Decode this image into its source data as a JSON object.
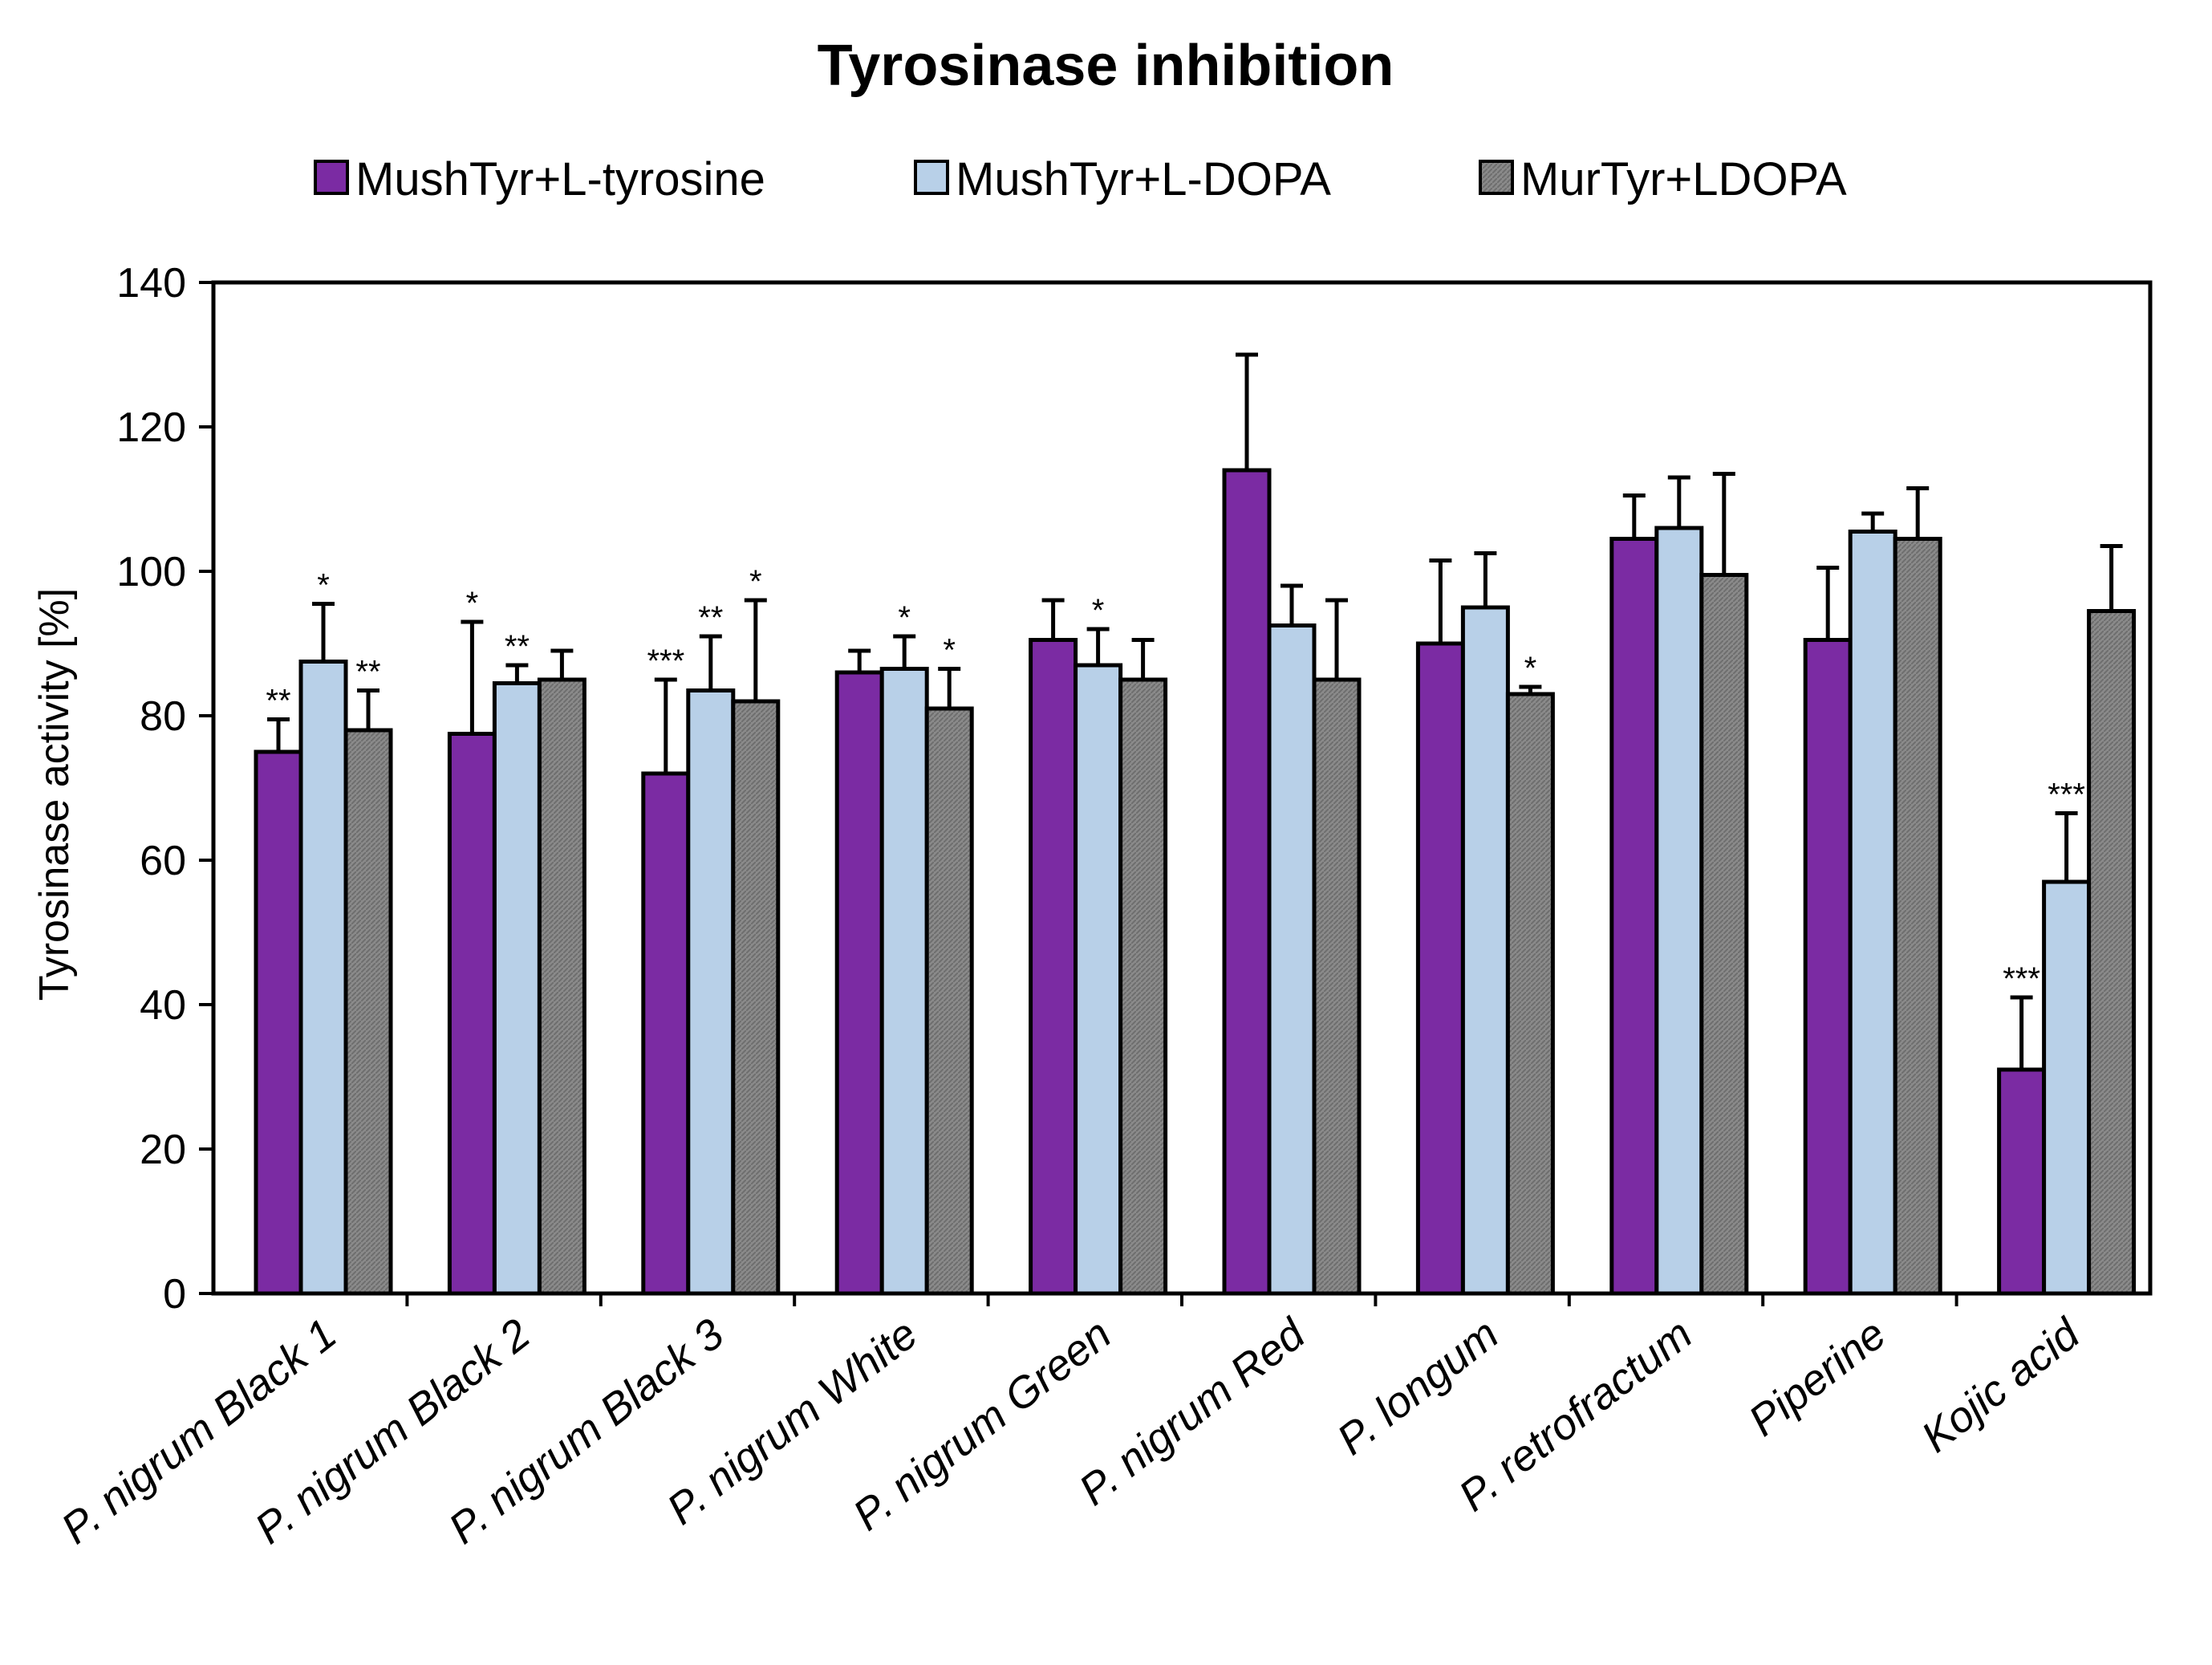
{
  "chart_data": {
    "type": "bar",
    "title": "Tyrosinase inhibition",
    "xlabel": "",
    "ylabel": "Tyrosinase activity [%]",
    "ylim": [
      0,
      140
    ],
    "yticks": [
      0,
      20,
      40,
      60,
      80,
      100,
      120,
      140
    ],
    "legend_position": "top",
    "grid": false,
    "error_bars": "positive",
    "categories": [
      "P. nigrum Black 1",
      "P. nigrum Black 2",
      "P. nigrum Black 3",
      "P. nigrum White",
      "P. nigrum Green",
      "P. nigrum Red",
      "P. longum",
      "P. retrofractum",
      "Piperine",
      "Kojic acid"
    ],
    "series": [
      {
        "name": "MushTyr+L-tyrosine",
        "color": "#7b2ba3",
        "values": [
          75,
          77.5,
          72,
          86,
          90.5,
          114,
          90,
          104.5,
          90.5,
          31
        ],
        "errors": [
          4.5,
          15.5,
          13,
          3,
          5.5,
          16,
          11.5,
          6,
          10,
          10
        ],
        "significance": [
          "**",
          "*",
          "***",
          "",
          "",
          "",
          "",
          "",
          "",
          "***"
        ]
      },
      {
        "name": "MushTyr+L-DOPA",
        "color": "#b8d0e8",
        "values": [
          87.5,
          84.5,
          83.5,
          86.5,
          87,
          92.5,
          95,
          106,
          105.5,
          57
        ],
        "errors": [
          8,
          2.5,
          7.5,
          4.5,
          5,
          5.5,
          7.5,
          7,
          2.5,
          9.5
        ],
        "significance": [
          "*",
          "**",
          "**",
          "*",
          "*",
          "",
          "",
          "",
          "",
          "***"
        ]
      },
      {
        "name": "MurTyr+LDOPA",
        "color": "#808080",
        "values": [
          78,
          85,
          82,
          81,
          85,
          85,
          83,
          99.5,
          104.5,
          94.5
        ],
        "errors": [
          5.5,
          4,
          14,
          5.5,
          5.5,
          11,
          1,
          14,
          7,
          9
        ],
        "significance": [
          "**",
          "",
          "*",
          "*",
          "",
          "",
          "*",
          "",
          "",
          ""
        ]
      }
    ]
  }
}
